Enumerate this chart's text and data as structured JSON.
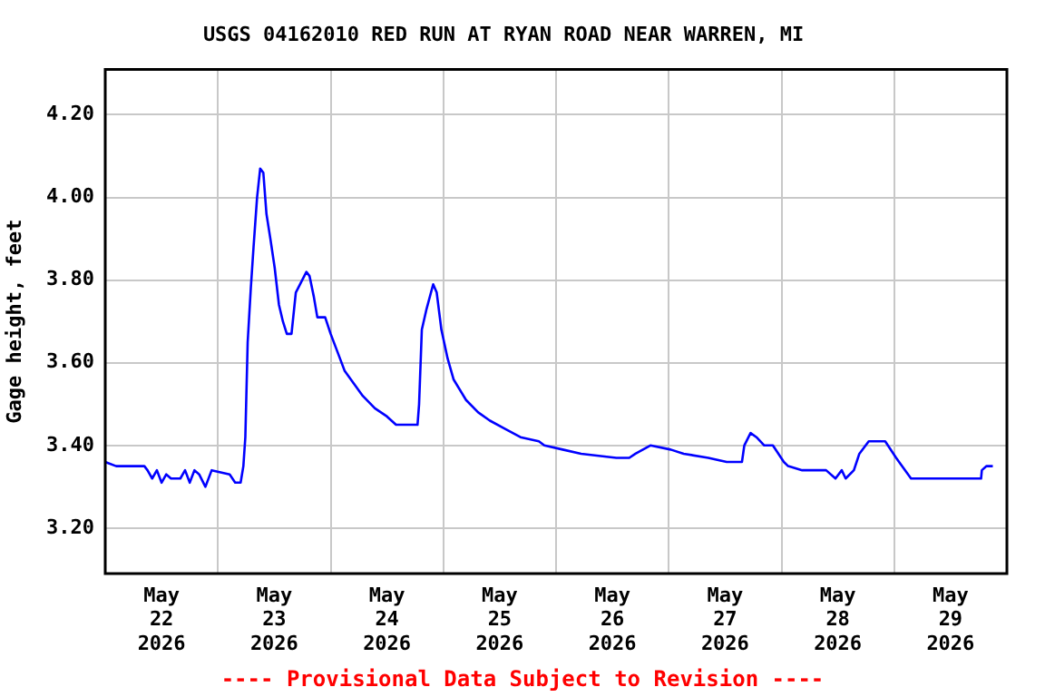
{
  "chart_data": {
    "type": "line",
    "title": "USGS 04162010 RED RUN AT RYAN ROAD NEAR WARREN, MI",
    "ylabel": "Gage height, feet",
    "annotations": [
      "---- Provisional Data Subject to Revision ----"
    ],
    "x": [
      "2026-05-22T00:00",
      "2026-05-22T02:20",
      "2026-05-22T08:20",
      "2026-05-22T09:00",
      "2026-05-22T10:00",
      "2026-05-22T11:00",
      "2026-05-22T12:00",
      "2026-05-22T13:00",
      "2026-05-22T14:00",
      "2026-05-22T16:00",
      "2026-05-22T17:00",
      "2026-05-22T18:00",
      "2026-05-22T19:00",
      "2026-05-22T20:00",
      "2026-05-22T21:20",
      "2026-05-22T22:40",
      "2026-05-23T02:30",
      "2026-05-23T03:40",
      "2026-05-23T04:50",
      "2026-05-23T05:25",
      "2026-05-23T05:50",
      "2026-05-23T06:20",
      "2026-05-23T07:00",
      "2026-05-23T07:35",
      "2026-05-23T08:20",
      "2026-05-23T09:00",
      "2026-05-23T09:40",
      "2026-05-23T10:20",
      "2026-05-23T11:10",
      "2026-05-23T12:05",
      "2026-05-23T13:00",
      "2026-05-23T13:50",
      "2026-05-23T14:40",
      "2026-05-23T15:40",
      "2026-05-23T16:35",
      "2026-05-23T17:30",
      "2026-05-23T18:50",
      "2026-05-23T19:30",
      "2026-05-23T20:25",
      "2026-05-23T21:10",
      "2026-05-23T22:50",
      "2026-05-24T00:00",
      "2026-05-24T01:40",
      "2026-05-24T03:00",
      "2026-05-24T04:55",
      "2026-05-24T06:50",
      "2026-05-24T09:25",
      "2026-05-24T12:00",
      "2026-05-24T13:55",
      "2026-05-24T18:30",
      "2026-05-24T18:50",
      "2026-05-24T19:25",
      "2026-05-24T20:25",
      "2026-05-24T21:50",
      "2026-05-24T22:35",
      "2026-05-24T23:35",
      "2026-05-25T00:55",
      "2026-05-25T02:10",
      "2026-05-25T04:50",
      "2026-05-25T07:25",
      "2026-05-25T09:55",
      "2026-05-25T13:10",
      "2026-05-25T16:25",
      "2026-05-25T20:20",
      "2026-05-25T21:30",
      "2026-05-26T01:25",
      "2026-05-26T05:20",
      "2026-05-26T12:50",
      "2026-05-26T15:35",
      "2026-05-26T16:55",
      "2026-05-26T20:05",
      "2026-05-27T00:25",
      "2026-05-27T03:10",
      "2026-05-27T08:25",
      "2026-05-27T12:20",
      "2026-05-27T15:35",
      "2026-05-27T16:05",
      "2026-05-27T17:25",
      "2026-05-27T18:40",
      "2026-05-27T20:20",
      "2026-05-27T22:10",
      "2026-05-28T00:30",
      "2026-05-28T01:25",
      "2026-05-28T04:25",
      "2026-05-28T09:30",
      "2026-05-28T11:30",
      "2026-05-28T12:50",
      "2026-05-28T13:40",
      "2026-05-28T15:25",
      "2026-05-28T16:35",
      "2026-05-28T18:35",
      "2026-05-28T22:05",
      "2026-05-29T00:25",
      "2026-05-29T01:40",
      "2026-05-29T03:35",
      "2026-05-29T18:30",
      "2026-05-29T18:40",
      "2026-05-29T19:40",
      "2026-05-29T21:00"
    ],
    "series": [
      {
        "color": "#0000ff",
        "values": [
          3.36,
          3.35,
          3.35,
          3.34,
          3.32,
          3.34,
          3.31,
          3.33,
          3.32,
          3.32,
          3.34,
          3.31,
          3.34,
          3.33,
          3.3,
          3.34,
          3.33,
          3.31,
          3.31,
          3.35,
          3.42,
          3.65,
          3.78,
          3.88,
          4.0,
          4.07,
          4.06,
          3.96,
          3.9,
          3.83,
          3.74,
          3.7,
          3.67,
          3.67,
          3.77,
          3.79,
          3.82,
          3.81,
          3.76,
          3.71,
          3.71,
          3.67,
          3.62,
          3.58,
          3.55,
          3.52,
          3.49,
          3.47,
          3.45,
          3.45,
          3.5,
          3.68,
          3.73,
          3.79,
          3.77,
          3.68,
          3.61,
          3.56,
          3.51,
          3.48,
          3.46,
          3.44,
          3.42,
          3.41,
          3.4,
          3.39,
          3.38,
          3.37,
          3.37,
          3.38,
          3.4,
          3.39,
          3.38,
          3.37,
          3.36,
          3.36,
          3.4,
          3.43,
          3.42,
          3.4,
          3.4,
          3.36,
          3.35,
          3.34,
          3.34,
          3.32,
          3.34,
          3.32,
          3.34,
          3.38,
          3.41,
          3.41,
          3.37,
          3.35,
          3.32,
          3.32,
          3.34,
          3.35,
          3.35
        ]
      }
    ],
    "xlim": [
      "2026-05-22T00:00",
      "2026-05-30T00:00"
    ],
    "xticks": [
      {
        "value": "2026-05-22T12:00",
        "label": "May\n22\n2026"
      },
      {
        "value": "2026-05-23T00:00",
        "label": null
      },
      {
        "value": "2026-05-23T12:00",
        "label": "May\n23\n2026"
      },
      {
        "value": "2026-05-24T00:00",
        "label": null
      },
      {
        "value": "2026-05-24T12:00",
        "label": "May\n24\n2026"
      },
      {
        "value": "2026-05-25T00:00",
        "label": null
      },
      {
        "value": "2026-05-25T12:00",
        "label": "May\n25\n2026"
      },
      {
        "value": "2026-05-26T00:00",
        "label": null
      },
      {
        "value": "2026-05-26T12:00",
        "label": "May\n26\n2026"
      },
      {
        "value": "2026-05-27T00:00",
        "label": null
      },
      {
        "value": "2026-05-27T12:00",
        "label": "May\n27\n2026"
      },
      {
        "value": "2026-05-28T00:00",
        "label": null
      },
      {
        "value": "2026-05-28T12:00",
        "label": "May\n28\n2026"
      },
      {
        "value": "2026-05-29T00:00",
        "label": null
      },
      {
        "value": "2026-05-29T12:00",
        "label": "May\n29\n2026"
      }
    ],
    "ylim": [
      3.09,
      4.31
    ],
    "yticks": [
      {
        "value": 3.2,
        "label": "3.20"
      },
      {
        "value": 3.4,
        "label": "3.40"
      },
      {
        "value": 3.6,
        "label": "3.60"
      },
      {
        "value": 3.8,
        "label": "3.80"
      },
      {
        "value": 4.0,
        "label": "4.00"
      },
      {
        "value": 4.2,
        "label": "4.20"
      }
    ],
    "grid": true,
    "legend": false,
    "marker": "none",
    "line_style": "solid"
  }
}
